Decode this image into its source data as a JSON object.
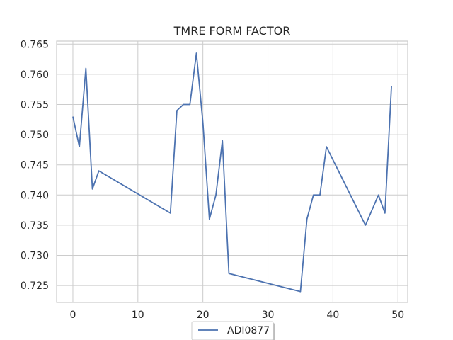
{
  "chart_data": {
    "type": "line",
    "title": "TMRE FORM FACTOR",
    "xlabel": "",
    "ylabel": "",
    "xlim": [
      -2.5,
      51.5
    ],
    "ylim": [
      0.7222,
      0.7655
    ],
    "xticks": [
      0,
      10,
      20,
      30,
      40,
      50
    ],
    "xtick_labels": [
      "0",
      "10",
      "20",
      "30",
      "40",
      "50"
    ],
    "yticks": [
      0.725,
      0.73,
      0.735,
      0.74,
      0.745,
      0.75,
      0.755,
      0.76,
      0.765
    ],
    "ytick_labels": [
      "0.725",
      "0.730",
      "0.735",
      "0.740",
      "0.745",
      "0.750",
      "0.755",
      "0.760",
      "0.765"
    ],
    "grid": true,
    "legend_position": "bottom-center",
    "series": [
      {
        "name": "ADI0877",
        "color": "#4c72b0",
        "x": [
          0,
          1,
          2,
          3,
          4,
          15,
          16,
          17,
          18,
          19,
          20,
          21,
          22,
          23,
          24,
          35,
          36,
          37,
          38,
          39,
          45,
          47,
          48,
          49
        ],
        "y": [
          0.753,
          0.748,
          0.761,
          0.741,
          0.744,
          0.737,
          0.754,
          0.755,
          0.755,
          0.7635,
          0.752,
          0.736,
          0.74,
          0.749,
          0.727,
          0.724,
          0.736,
          0.74,
          0.74,
          0.748,
          0.735,
          0.74,
          0.737,
          0.758
        ]
      }
    ]
  }
}
